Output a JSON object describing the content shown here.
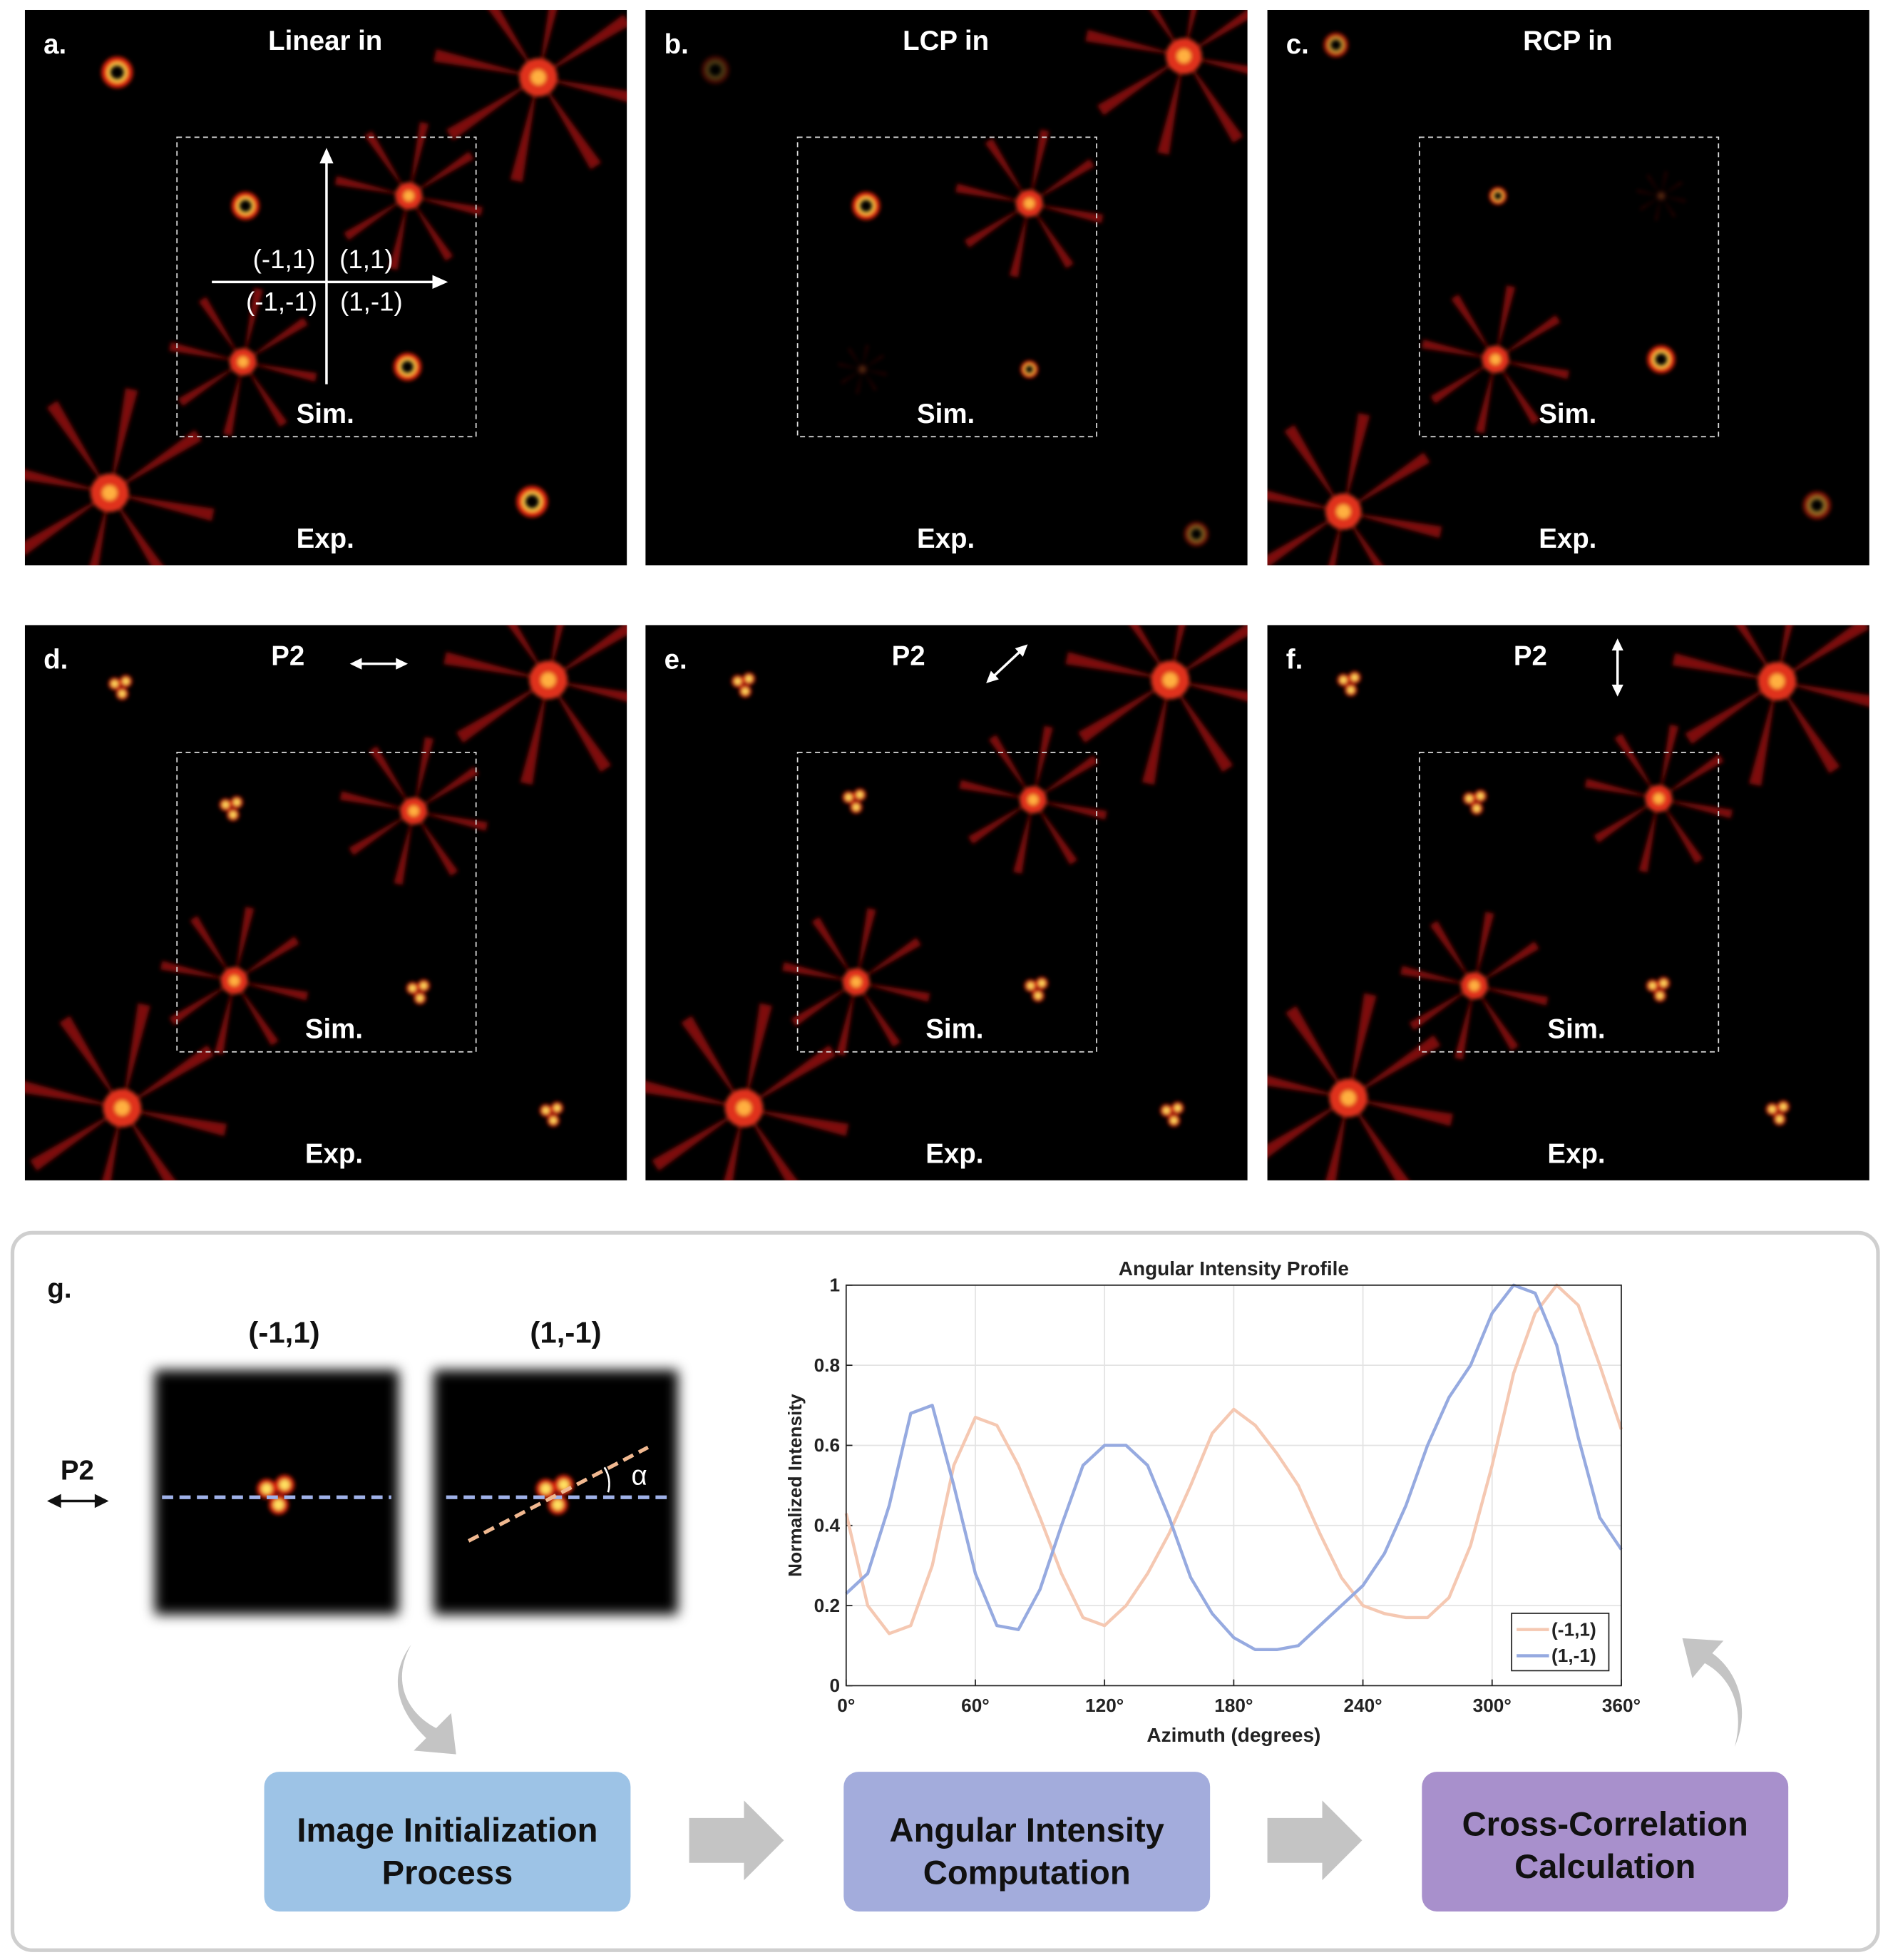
{
  "panels": [
    {
      "label": "a.",
      "title": "Linear in",
      "sim": "Sim.",
      "exp": "Exp."
    },
    {
      "label": "b.",
      "title": "LCP in",
      "sim": "Sim.",
      "exp": "Exp."
    },
    {
      "label": "c.",
      "title": "RCP in",
      "sim": "Sim.",
      "exp": "Exp."
    },
    {
      "label": "d.",
      "title": "P2",
      "sim": "Sim.",
      "exp": "Exp."
    },
    {
      "label": "e.",
      "title": "P2",
      "sim": "Sim.",
      "exp": "Exp."
    },
    {
      "label": "f.",
      "title": "P2",
      "sim": "Sim.",
      "exp": "Exp."
    }
  ],
  "quadrant_labels": [
    "(-1,1)",
    "(1,1)",
    "(-1,-1)",
    "(1,-1)"
  ],
  "panel_g": {
    "label": "g.",
    "images": [
      "(-1,1)",
      "(1,-1)"
    ],
    "polarizer": "P2",
    "angle": "α",
    "steps": [
      [
        "Image Initialization",
        "Process"
      ],
      [
        "Angular Intensity",
        "Computation"
      ],
      [
        "Cross-Correlation",
        "Calculation"
      ]
    ]
  },
  "chart_data": {
    "type": "line",
    "title": "Angular Intensity Profile",
    "x_label": "Azimuth (degrees)",
    "y_label": "Normalized Intensity",
    "x": [
      0,
      10,
      20,
      30,
      40,
      50,
      60,
      70,
      80,
      90,
      100,
      110,
      120,
      130,
      140,
      150,
      160,
      170,
      180,
      190,
      200,
      210,
      220,
      230,
      240,
      250,
      260,
      270,
      280,
      290,
      300,
      310,
      320,
      330,
      340,
      350,
      360
    ],
    "series": [
      {
        "name": "(-1,1)",
        "color": "#f5c8b2",
        "values": [
          0.43,
          0.2,
          0.13,
          0.15,
          0.3,
          0.55,
          0.67,
          0.65,
          0.55,
          0.42,
          0.28,
          0.17,
          0.15,
          0.2,
          0.28,
          0.38,
          0.5,
          0.63,
          0.69,
          0.65,
          0.58,
          0.5,
          0.38,
          0.27,
          0.2,
          0.18,
          0.17,
          0.17,
          0.22,
          0.35,
          0.55,
          0.78,
          0.93,
          1.0,
          0.95,
          0.8,
          0.64
        ]
      },
      {
        "name": "(1,-1)",
        "color": "#96aae0",
        "values": [
          0.23,
          0.28,
          0.45,
          0.68,
          0.7,
          0.5,
          0.28,
          0.15,
          0.14,
          0.24,
          0.4,
          0.55,
          0.6,
          0.6,
          0.55,
          0.42,
          0.27,
          0.18,
          0.12,
          0.09,
          0.09,
          0.1,
          0.15,
          0.2,
          0.25,
          0.33,
          0.45,
          0.6,
          0.72,
          0.8,
          0.93,
          1.0,
          0.98,
          0.85,
          0.62,
          0.42,
          0.34
        ]
      }
    ],
    "xlim": [
      0,
      360
    ],
    "xticks": [
      {
        "value": 0,
        "label": "0°"
      },
      {
        "value": 60,
        "label": "60°"
      },
      {
        "value": 120,
        "label": "120°"
      },
      {
        "value": 180,
        "label": "180°"
      },
      {
        "value": 240,
        "label": "240°"
      },
      {
        "value": 300,
        "label": "300°"
      },
      {
        "value": 360,
        "label": "360°"
      }
    ],
    "ylim": [
      0,
      1
    ],
    "yticks": [
      0,
      0.2,
      0.4,
      0.6,
      0.8,
      1
    ],
    "grid": true,
    "legend": "southeast"
  }
}
